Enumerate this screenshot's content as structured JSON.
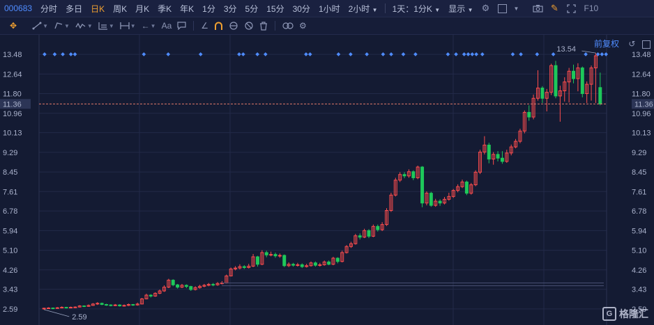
{
  "toolbar": {
    "stock_code": "000683",
    "tabs": [
      {
        "label": "分时",
        "active": false
      },
      {
        "label": "多日",
        "active": false
      },
      {
        "label": "日K",
        "active": true
      },
      {
        "label": "周K",
        "active": false
      },
      {
        "label": "月K",
        "active": false
      },
      {
        "label": "季K",
        "active": false
      },
      {
        "label": "年K",
        "active": false
      },
      {
        "label": "1分",
        "active": false
      },
      {
        "label": "3分",
        "active": false
      },
      {
        "label": "5分",
        "active": false
      },
      {
        "label": "15分",
        "active": false
      },
      {
        "label": "30分",
        "active": false
      },
      {
        "label": "1小时",
        "active": false
      },
      {
        "label": "2小时",
        "active": false
      }
    ],
    "dropdown_2h": "2小时",
    "range_select": "1天：1分K",
    "display_select": "显示",
    "f10_label": "F10",
    "accent_color": "#f0a030",
    "code_color": "#4f8cff"
  },
  "drawing_toolbar": {
    "text_tool_label": "Aa",
    "icons": [
      "crosshair-move-icon",
      "line-tool-icon",
      "pattern-tool-icon",
      "wave-tool-icon",
      "fib-tool-icon",
      "measure-tool-icon",
      "arrow-tool-icon",
      "text-tool-icon",
      "comment-icon",
      "ruler-icon",
      "magnet-icon",
      "eye-link-icon",
      "hide-icon",
      "trash-icon",
      "lock-icon",
      "settings-icon"
    ]
  },
  "chart_controls": {
    "adjust_label": "前复权"
  },
  "price_axis": {
    "ticks": [
      "13.48",
      "12.64",
      "11.80",
      "10.96",
      "10.13",
      "9.29",
      "8.45",
      "7.61",
      "6.78",
      "5.94",
      "5.10",
      "4.26",
      "3.43",
      "2.59"
    ],
    "current_price": "11.36",
    "high_label": "13.54",
    "low_label": "2.59"
  },
  "colors": {
    "up": "#ff4d4d",
    "down": "#1ec85a",
    "background": "#141b33",
    "grid": "#222a48",
    "marker": "#4f8cff",
    "price_line": "#e07a6a"
  },
  "chart_data": {
    "type": "candlestick",
    "ylim": [
      2.2,
      13.9
    ],
    "candles": [
      [
        2.6,
        2.62,
        2.64,
        2.56
      ],
      [
        2.62,
        2.63,
        2.66,
        2.59
      ],
      [
        2.63,
        2.61,
        2.65,
        2.58
      ],
      [
        2.61,
        2.64,
        2.67,
        2.6
      ],
      [
        2.64,
        2.66,
        2.7,
        2.62
      ],
      [
        2.66,
        2.64,
        2.68,
        2.61
      ],
      [
        2.64,
        2.66,
        2.69,
        2.62
      ],
      [
        2.66,
        2.67,
        2.7,
        2.64
      ],
      [
        2.67,
        2.72,
        2.75,
        2.65
      ],
      [
        2.72,
        2.7,
        2.74,
        2.67
      ],
      [
        2.7,
        2.74,
        2.78,
        2.68
      ],
      [
        2.74,
        2.8,
        2.84,
        2.72
      ],
      [
        2.8,
        2.83,
        2.88,
        2.76
      ],
      [
        2.83,
        2.78,
        2.86,
        2.75
      ],
      [
        2.78,
        2.76,
        2.81,
        2.72
      ],
      [
        2.76,
        2.74,
        2.79,
        2.7
      ],
      [
        2.74,
        2.76,
        2.8,
        2.71
      ],
      [
        2.76,
        2.72,
        2.79,
        2.69
      ],
      [
        2.72,
        2.74,
        2.78,
        2.69
      ],
      [
        2.74,
        2.78,
        2.82,
        2.71
      ],
      [
        2.78,
        2.76,
        2.8,
        2.72
      ],
      [
        2.76,
        2.8,
        2.86,
        2.73
      ],
      [
        2.8,
        3.02,
        3.06,
        2.79
      ],
      [
        3.02,
        3.18,
        3.24,
        3.0
      ],
      [
        3.18,
        3.14,
        3.22,
        3.08
      ],
      [
        3.14,
        3.26,
        3.3,
        3.11
      ],
      [
        3.26,
        3.36,
        3.42,
        3.22
      ],
      [
        3.36,
        3.52,
        3.6,
        3.32
      ],
      [
        3.52,
        3.82,
        3.88,
        3.48
      ],
      [
        3.82,
        3.62,
        3.86,
        3.56
      ],
      [
        3.62,
        3.52,
        3.66,
        3.46
      ],
      [
        3.52,
        3.6,
        3.66,
        3.48
      ],
      [
        3.6,
        3.55,
        3.64,
        3.48
      ],
      [
        3.55,
        3.42,
        3.58,
        3.36
      ],
      [
        3.42,
        3.5,
        3.56,
        3.38
      ],
      [
        3.5,
        3.56,
        3.62,
        3.46
      ],
      [
        3.56,
        3.6,
        3.66,
        3.52
      ],
      [
        3.6,
        3.64,
        3.7,
        3.56
      ],
      [
        3.64,
        3.62,
        3.7,
        3.56
      ],
      [
        3.62,
        3.68,
        3.74,
        3.58
      ],
      [
        3.68,
        3.7,
        3.78,
        3.64
      ],
      [
        3.7,
        4.0,
        4.06,
        3.68
      ],
      [
        4.0,
        4.3,
        4.36,
        3.98
      ],
      [
        4.3,
        4.34,
        4.42,
        4.24
      ],
      [
        4.34,
        4.4,
        4.5,
        4.28
      ],
      [
        4.4,
        4.36,
        4.46,
        4.3
      ],
      [
        4.36,
        4.42,
        4.52,
        4.32
      ],
      [
        4.42,
        4.82,
        4.94,
        4.38
      ],
      [
        4.82,
        4.5,
        4.86,
        4.4
      ],
      [
        4.5,
        5.0,
        5.1,
        4.46
      ],
      [
        5.0,
        4.9,
        5.08,
        4.8
      ],
      [
        4.9,
        4.92,
        5.04,
        4.84
      ],
      [
        4.92,
        4.86,
        5.0,
        4.78
      ],
      [
        4.86,
        4.88,
        4.96,
        4.78
      ],
      [
        4.88,
        4.44,
        4.92,
        4.38
      ],
      [
        4.44,
        4.5,
        4.58,
        4.38
      ],
      [
        4.5,
        4.46,
        4.56,
        4.4
      ],
      [
        4.46,
        4.48,
        4.56,
        4.4
      ],
      [
        4.48,
        4.4,
        4.54,
        4.34
      ],
      [
        4.4,
        4.44,
        4.52,
        4.36
      ],
      [
        4.44,
        4.56,
        4.62,
        4.4
      ],
      [
        4.56,
        4.46,
        4.62,
        4.4
      ],
      [
        4.46,
        4.48,
        4.56,
        4.4
      ],
      [
        4.48,
        4.6,
        4.66,
        4.44
      ],
      [
        4.6,
        4.5,
        4.66,
        4.46
      ],
      [
        4.5,
        4.76,
        4.82,
        4.46
      ],
      [
        4.76,
        4.62,
        4.8,
        4.54
      ],
      [
        4.62,
        5.0,
        5.08,
        4.58
      ],
      [
        5.0,
        5.26,
        5.32,
        4.96
      ],
      [
        5.26,
        5.38,
        5.46,
        5.2
      ],
      [
        5.38,
        5.72,
        5.8,
        5.34
      ],
      [
        5.72,
        5.66,
        5.82,
        5.56
      ],
      [
        5.66,
        5.94,
        6.02,
        5.62
      ],
      [
        5.94,
        5.7,
        6.0,
        5.62
      ],
      [
        5.7,
        6.12,
        6.2,
        5.66
      ],
      [
        6.12,
        5.98,
        6.2,
        5.9
      ],
      [
        5.98,
        6.2,
        6.3,
        5.92
      ],
      [
        6.2,
        6.8,
        6.9,
        6.14
      ],
      [
        6.8,
        7.46,
        7.56,
        6.74
      ],
      [
        7.46,
        8.1,
        8.2,
        7.4
      ],
      [
        8.1,
        8.34,
        8.44,
        8.02
      ],
      [
        8.34,
        8.28,
        8.44,
        8.18
      ],
      [
        8.28,
        8.46,
        8.56,
        8.2
      ],
      [
        8.46,
        8.2,
        8.52,
        8.1
      ],
      [
        8.2,
        8.66,
        8.72,
        8.14
      ],
      [
        8.66,
        7.12,
        8.7,
        6.94
      ],
      [
        7.12,
        7.54,
        7.62,
        7.02
      ],
      [
        7.54,
        7.02,
        7.6,
        6.96
      ],
      [
        7.02,
        7.2,
        7.3,
        6.96
      ],
      [
        7.2,
        7.12,
        7.28,
        7.0
      ],
      [
        7.12,
        7.28,
        7.38,
        7.06
      ],
      [
        7.28,
        7.4,
        7.56,
        7.22
      ],
      [
        7.4,
        7.66,
        7.72,
        7.34
      ],
      [
        7.66,
        7.82,
        7.92,
        7.58
      ],
      [
        7.82,
        8.02,
        8.12,
        7.76
      ],
      [
        8.02,
        7.54,
        8.08,
        7.46
      ],
      [
        7.54,
        7.9,
        7.98,
        7.48
      ],
      [
        7.9,
        8.44,
        8.52,
        7.84
      ],
      [
        8.44,
        9.3,
        9.4,
        8.36
      ],
      [
        9.3,
        9.6,
        9.98,
        9.2
      ],
      [
        9.6,
        9.0,
        9.7,
        8.82
      ],
      [
        9.0,
        9.2,
        9.3,
        8.76
      ],
      [
        9.2,
        9.04,
        9.34,
        8.9
      ],
      [
        9.04,
        8.9,
        9.34,
        8.8
      ],
      [
        8.9,
        9.26,
        9.4,
        8.84
      ],
      [
        9.26,
        9.52,
        9.62,
        9.16
      ],
      [
        9.52,
        9.76,
        9.86,
        9.46
      ],
      [
        9.76,
        10.2,
        10.3,
        9.68
      ],
      [
        10.2,
        11.0,
        11.08,
        10.1
      ],
      [
        11.0,
        10.8,
        11.3,
        10.64
      ],
      [
        10.8,
        11.6,
        11.76,
        10.7
      ],
      [
        11.6,
        12.04,
        12.8,
        11.5
      ],
      [
        12.04,
        11.6,
        12.12,
        11.4
      ],
      [
        11.6,
        11.86,
        12.0,
        11.04
      ],
      [
        11.86,
        13.0,
        13.08,
        11.74
      ],
      [
        13.0,
        11.7,
        13.2,
        11.6
      ],
      [
        11.7,
        11.92,
        12.14,
        10.6
      ],
      [
        11.92,
        12.3,
        12.5,
        11.46
      ],
      [
        12.3,
        12.76,
        12.9,
        11.42
      ],
      [
        12.76,
        12.44,
        13.04,
        12.24
      ],
      [
        12.44,
        12.9,
        13.1,
        11.9
      ],
      [
        12.9,
        11.8,
        12.96,
        11.64
      ],
      [
        11.8,
        12.2,
        12.32,
        11.4
      ],
      [
        12.2,
        12.9,
        13.0,
        11.5
      ],
      [
        12.9,
        13.42,
        13.54,
        11.4
      ],
      [
        12.06,
        11.36,
        12.7,
        11.3
      ]
    ]
  },
  "markers_x_fraction": [
    0.005,
    0.03,
    0.05,
    0.07,
    0.08,
    0.25,
    0.31,
    0.39,
    0.485,
    0.495,
    0.53,
    0.55,
    0.65,
    0.66,
    0.73,
    0.76,
    0.8,
    0.84,
    0.86,
    0.89,
    0.92,
    1.0,
    1.02,
    1.04,
    1.05,
    1.06,
    1.07,
    1.085,
    1.16,
    1.18,
    1.22,
    1.26,
    1.34,
    1.37,
    1.38,
    1.39
  ]
}
